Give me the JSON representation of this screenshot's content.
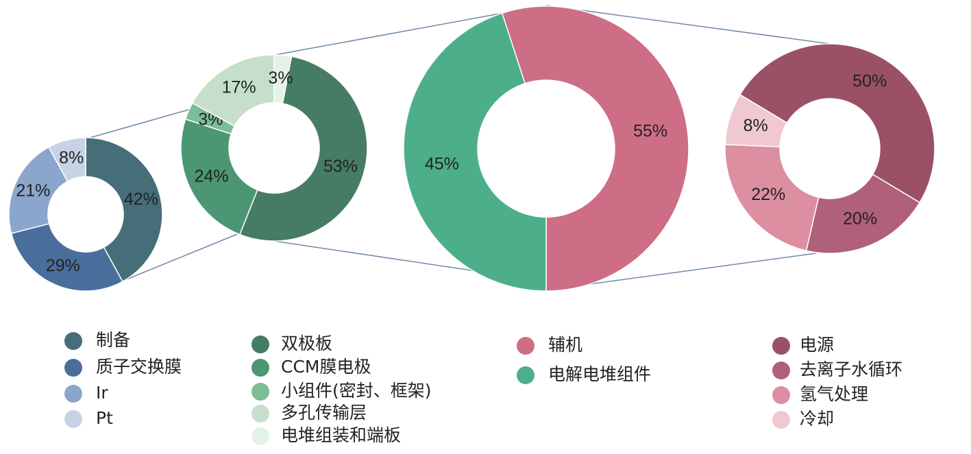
{
  "chart_data": [
    {
      "type": "pie",
      "categories": [
        "制备",
        "质子交换膜",
        "Ir",
        "Pt"
      ],
      "values": [
        42,
        29,
        21,
        8
      ],
      "value_labels": [
        "42%",
        "29%",
        "21%",
        "8%"
      ],
      "colors": [
        "#456e78",
        "#4a6e9c",
        "#8ba6cc",
        "#c8d2e6"
      ]
    },
    {
      "type": "pie",
      "categories": [
        "双极板",
        "CCM膜电极",
        "小组件(密封、框架)",
        "多孔传输层",
        "电堆组装和端板"
      ],
      "values": [
        53,
        24,
        3,
        17,
        3
      ],
      "value_labels": [
        "53%",
        "24%",
        "3%",
        "17%",
        "3%"
      ],
      "colors": [
        "#467c63",
        "#4c9673",
        "#7bbd96",
        "#c5dfcb",
        "#e5f2e6"
      ]
    },
    {
      "type": "pie",
      "categories": [
        "辅机",
        "电解电堆组件"
      ],
      "values": [
        55,
        45
      ],
      "value_labels": [
        "55%",
        "45%"
      ],
      "colors": [
        "#cd6e86",
        "#4daf8a"
      ]
    },
    {
      "type": "pie",
      "categories": [
        "电源",
        "去离子水循环",
        "氢气处理",
        "冷却"
      ],
      "values": [
        50,
        20,
        22,
        8
      ],
      "value_labels": [
        "50%",
        "20%",
        "22%",
        "8%"
      ],
      "colors": [
        "#9a5165",
        "#b06078",
        "#dc8fa0",
        "#f0c8cf"
      ]
    }
  ]
}
